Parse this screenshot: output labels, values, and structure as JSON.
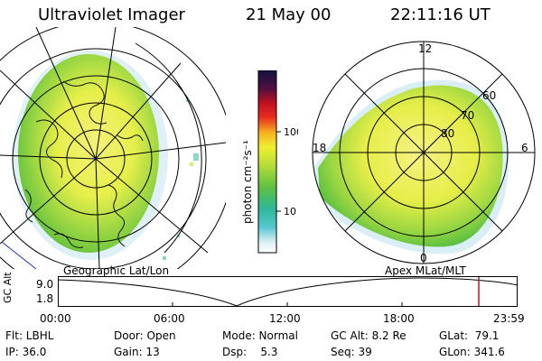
{
  "header": {
    "instrument": "Ultraviolet Imager",
    "date": "21 May 00",
    "time": "22:11:16 UT"
  },
  "colorbar": {
    "label": "photon cm⁻²s⁻¹",
    "ticks": [
      "100",
      "10"
    ]
  },
  "polar_plot": {
    "mlt_labels": [
      "12",
      "18",
      "6",
      "0"
    ],
    "lat_labels": [
      "60",
      "70",
      "80"
    ]
  },
  "map_captions": {
    "left": "Geographic Lat/Lon",
    "right": "Apex MLat/MLT"
  },
  "orbit_plot": {
    "ylabel": "GC Alt",
    "ytick_top": "9.0",
    "ytick_bottom": "1.8",
    "xticks": [
      "00:00",
      "06:00",
      "12:00",
      "18:00",
      "23:59"
    ]
  },
  "info": {
    "flt": "Flt: LBHL",
    "ip": "IP: 36.0",
    "door": "Door: Open",
    "gain": "Gain: 13",
    "mode": "Mode: Normal",
    "dsp": "Dsp:    5.3",
    "gc_alt": "GC Alt: 8.2 Re",
    "seq": "Seq: 39",
    "glat": "GLat:  79.1",
    "glon": "GLon: 341.6"
  },
  "colors": {
    "auroral_green": "#6cc23a",
    "auroral_yellow": "#f2ef3c",
    "cyan_edge": "#2fc4c4",
    "marker_red": "#d01010"
  }
}
